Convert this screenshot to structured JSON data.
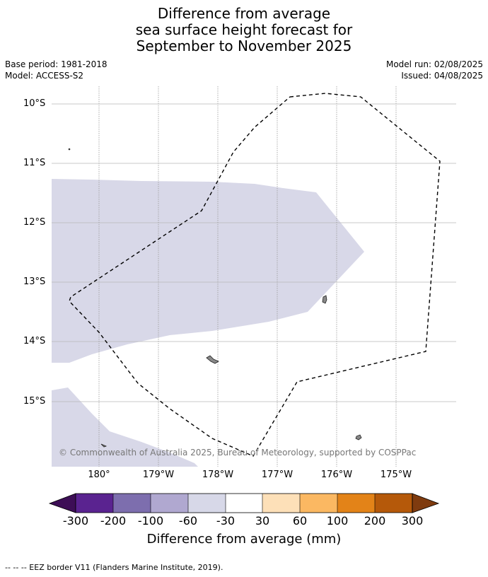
{
  "title": {
    "line1": "Difference from average",
    "line2": "sea surface height forecast for",
    "line3": "September to November 2025"
  },
  "meta": {
    "base_period": "Base period: 1981-2018",
    "model": "Model: ACCESS-S2",
    "model_run": "Model run: 02/08/2025",
    "issued": "Issued: 04/08/2025"
  },
  "map": {
    "lat_labels": [
      "10°S",
      "11°S",
      "12°S",
      "13°S",
      "14°S",
      "15°S"
    ],
    "lon_labels": [
      "180°",
      "179°W",
      "178°W",
      "177°W",
      "176°W",
      "175°W"
    ],
    "copyright": "© Commonwealth of Australia 2025, Bureau of Meteorology, supported by COSPPac",
    "anomaly_fill_color": "#d8d8e8",
    "land_color": "#888888",
    "eez_line_color": "#000000"
  },
  "colorbar": {
    "title": "Difference from average (mm)",
    "tick_labels": [
      "-300",
      "-200",
      "-100",
      "-60",
      "-30",
      "30",
      "60",
      "100",
      "200",
      "300"
    ],
    "colors": [
      "#3d0e56",
      "#5a2390",
      "#7d6eae",
      "#b0a8d0",
      "#d7d8e8",
      "#ffffff",
      "#fde0b8",
      "#fbb862",
      "#e38318",
      "#b5590a",
      "#7f3b0f"
    ]
  },
  "footnote": "-- -- -- EEZ border V11 (Flanders Marine Institute, 2019)."
}
